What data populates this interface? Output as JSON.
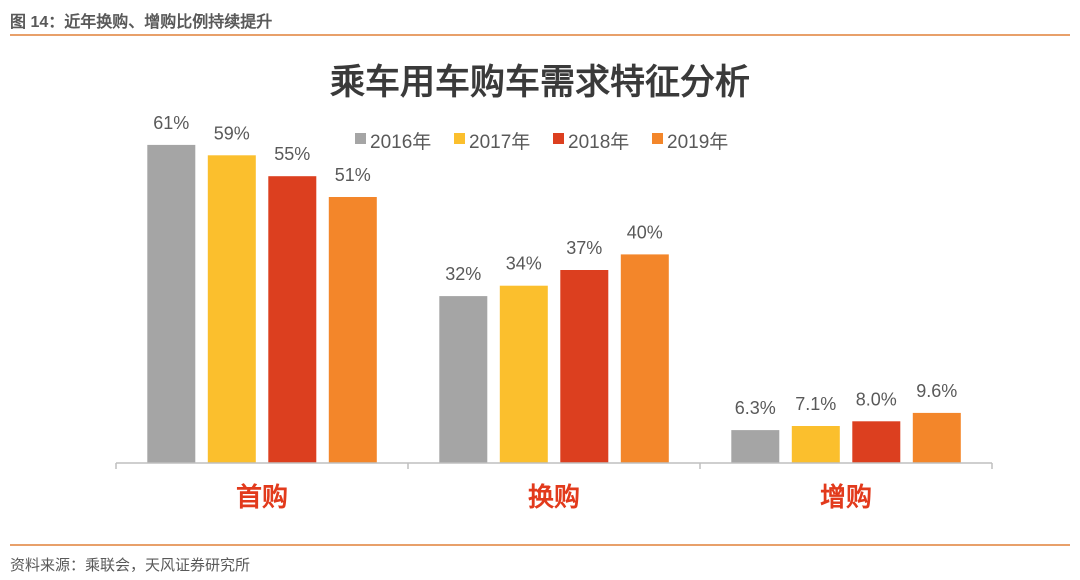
{
  "figure_caption": "图 14：近年换购、增购比例持续提升",
  "source_note": "资料来源：乘联会，天风证券研究所",
  "chart_data": {
    "type": "bar",
    "title": "乘车用车购车需求特征分析",
    "categories": [
      "首购",
      "换购",
      "增购"
    ],
    "series": [
      {
        "name": "2016年",
        "values": [
          61,
          32,
          6.3
        ],
        "labels": [
          "61%",
          "32%",
          "6.3%"
        ],
        "color": "#a5a5a5"
      },
      {
        "name": "2017年",
        "values": [
          59,
          34,
          7.1
        ],
        "labels": [
          "59%",
          "34%",
          "7.1%"
        ],
        "color": "#fbbf2d"
      },
      {
        "name": "2018年",
        "values": [
          55,
          37,
          8.0
        ],
        "labels": [
          "55%",
          "37%",
          "8.0%"
        ],
        "color": "#dc3f1f"
      },
      {
        "name": "2019年",
        "values": [
          51,
          40,
          9.6
        ],
        "labels": [
          "51%",
          "40%",
          "9.6%"
        ],
        "color": "#f3862a"
      }
    ],
    "category_label_color": "#e23a1c",
    "ylim": [
      0,
      65
    ],
    "grid": false,
    "legend_position": "top"
  }
}
